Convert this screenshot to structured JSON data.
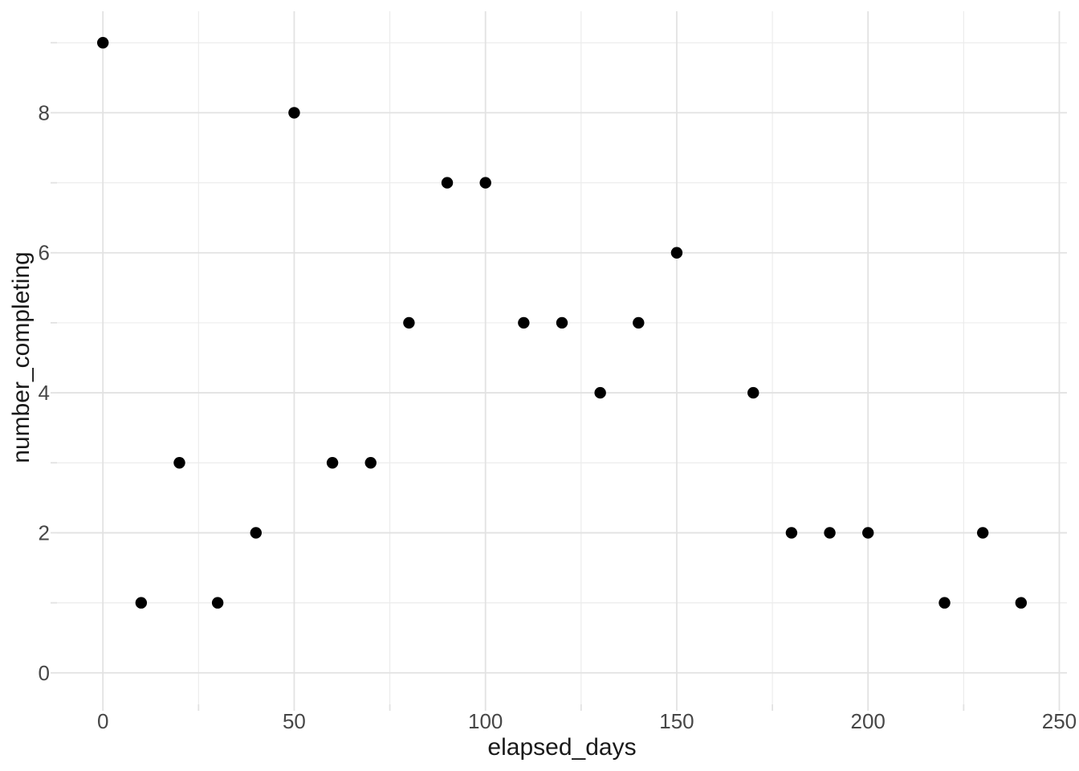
{
  "figure": {
    "background": "#ffffff"
  },
  "chart_data": {
    "type": "scatter",
    "title": "",
    "xlabel": "elapsed_days",
    "ylabel": "number_completing",
    "points": [
      [
        0,
        9
      ],
      [
        10,
        1
      ],
      [
        20,
        3
      ],
      [
        30,
        1
      ],
      [
        40,
        2
      ],
      [
        50,
        8
      ],
      [
        60,
        3
      ],
      [
        70,
        3
      ],
      [
        80,
        5
      ],
      [
        90,
        7
      ],
      [
        100,
        7
      ],
      [
        110,
        5
      ],
      [
        120,
        5
      ],
      [
        130,
        4
      ],
      [
        140,
        5
      ],
      [
        150,
        6
      ],
      [
        170,
        4
      ],
      [
        180,
        2
      ],
      [
        190,
        2
      ],
      [
        200,
        2
      ],
      [
        220,
        1
      ],
      [
        230,
        2
      ],
      [
        240,
        1
      ]
    ],
    "xlim": [
      -12,
      252
    ],
    "ylim": [
      -0.45,
      9.45
    ],
    "x_major_ticks": [
      0,
      50,
      100,
      150,
      200,
      250
    ],
    "x_minor_ticks": [
      25,
      75,
      125,
      175,
      225
    ],
    "y_major_ticks": [
      0,
      2,
      4,
      6,
      8
    ],
    "y_minor_ticks": [
      1,
      3,
      5,
      7,
      9
    ],
    "x_tick_labels": [
      "0",
      "50",
      "100",
      "150",
      "200",
      "250"
    ],
    "y_tick_labels": [
      "0",
      "2",
      "4",
      "6",
      "8"
    ],
    "grid": "major-and-minor",
    "legend_position": "none",
    "style": {
      "point_color": "#000000",
      "point_radius_px": 7.2,
      "major_grid_color": "#e2e2e2",
      "minor_grid_color": "#ececec",
      "tick_color": "#e2e2e2",
      "tick_label_color": "#474747",
      "axis_title_color": "#1a1a1a",
      "background_color": "#ffffff"
    }
  }
}
